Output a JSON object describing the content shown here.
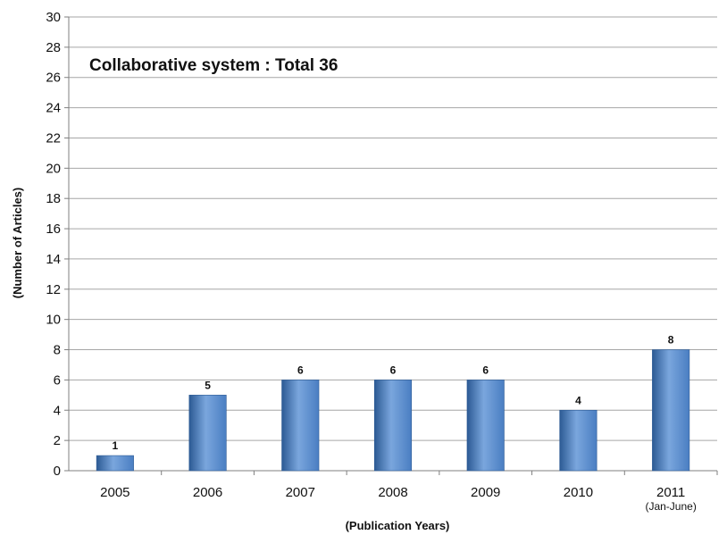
{
  "chart_data": {
    "type": "bar",
    "title": "Collaborative system : Total 36",
    "xlabel": "(Publication Years)",
    "ylabel": "(Number of Articles)",
    "categories": [
      "2005",
      "2006",
      "2007",
      "2008",
      "2009",
      "2010",
      "2011"
    ],
    "category_sublabels": [
      "",
      "",
      "",
      "",
      "",
      "",
      "(Jan-June)"
    ],
    "values": [
      1,
      5,
      6,
      6,
      6,
      4,
      8
    ],
    "data_labels": [
      "1",
      "5",
      "6",
      "6",
      "6",
      "4",
      "8"
    ],
    "ylim": [
      0,
      30
    ],
    "yticks": [
      0,
      2,
      4,
      6,
      8,
      10,
      12,
      14,
      16,
      18,
      20,
      22,
      24,
      26,
      28,
      30
    ],
    "grid": true,
    "colors": {
      "bar": "#4a7ec2",
      "bar_dark": "#2c5a94",
      "bar_light": "#7aa6dd",
      "grid": "#a6a6a6",
      "axis": "#7f7f7f"
    }
  }
}
